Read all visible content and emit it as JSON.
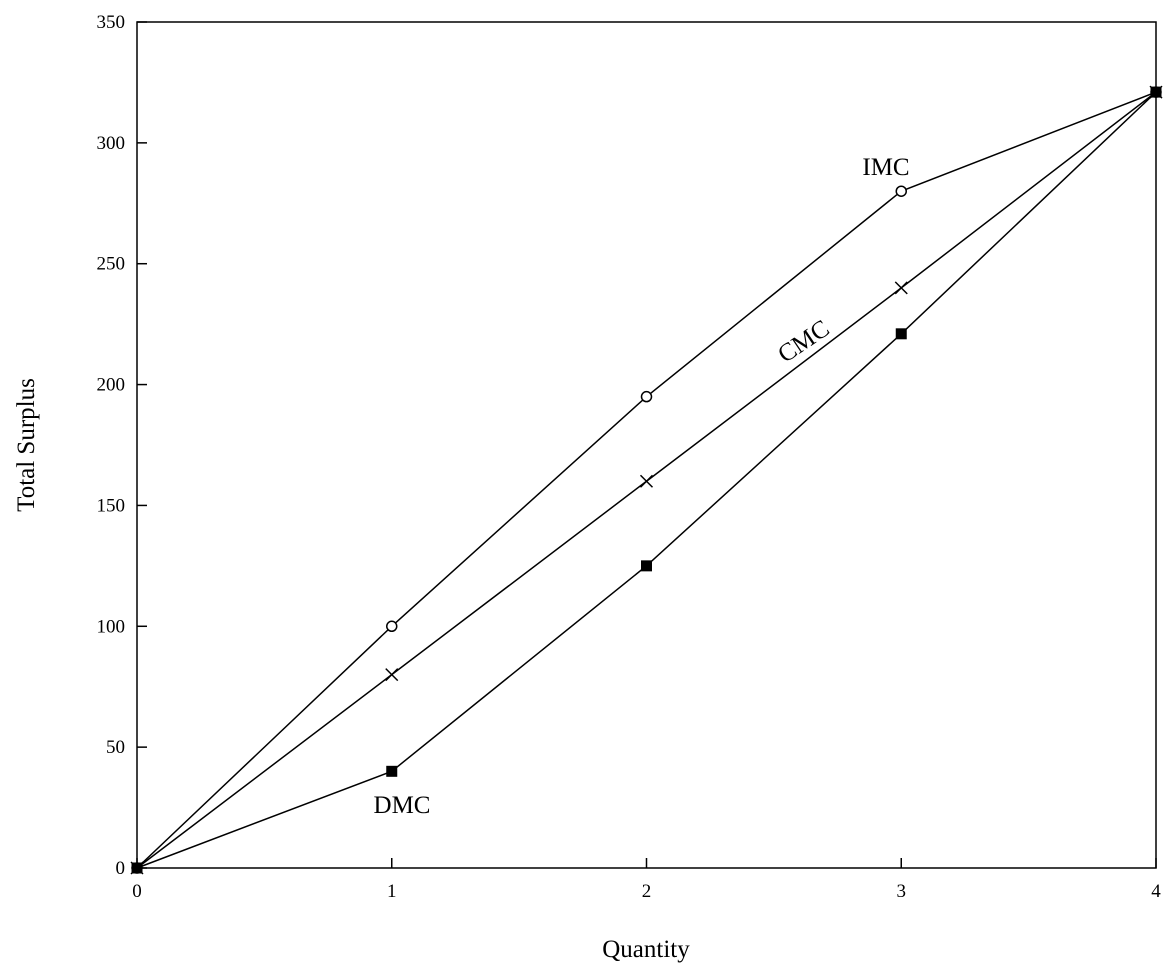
{
  "chart_data": {
    "type": "line",
    "title": "",
    "xlabel": "Quantity",
    "ylabel": "Total Surplus",
    "x": [
      0,
      1,
      2,
      3,
      4
    ],
    "xlim": [
      0,
      4
    ],
    "ylim": [
      0,
      350
    ],
    "xticks": [
      0,
      1,
      2,
      3,
      4
    ],
    "yticks": [
      0,
      50,
      100,
      150,
      200,
      250,
      300,
      350
    ],
    "grid": false,
    "legend": "none",
    "series": [
      {
        "name": "IMC",
        "marker": "open-circle",
        "values": [
          0,
          100,
          195,
          280,
          321
        ]
      },
      {
        "name": "CMC",
        "marker": "x",
        "values": [
          0,
          80,
          160,
          240,
          321
        ]
      },
      {
        "name": "DMC",
        "marker": "filled-square",
        "values": [
          0,
          40,
          125,
          221,
          321
        ]
      }
    ],
    "colors": {
      "line": "#000000",
      "marker": "#000000",
      "background": "#ffffff"
    }
  }
}
